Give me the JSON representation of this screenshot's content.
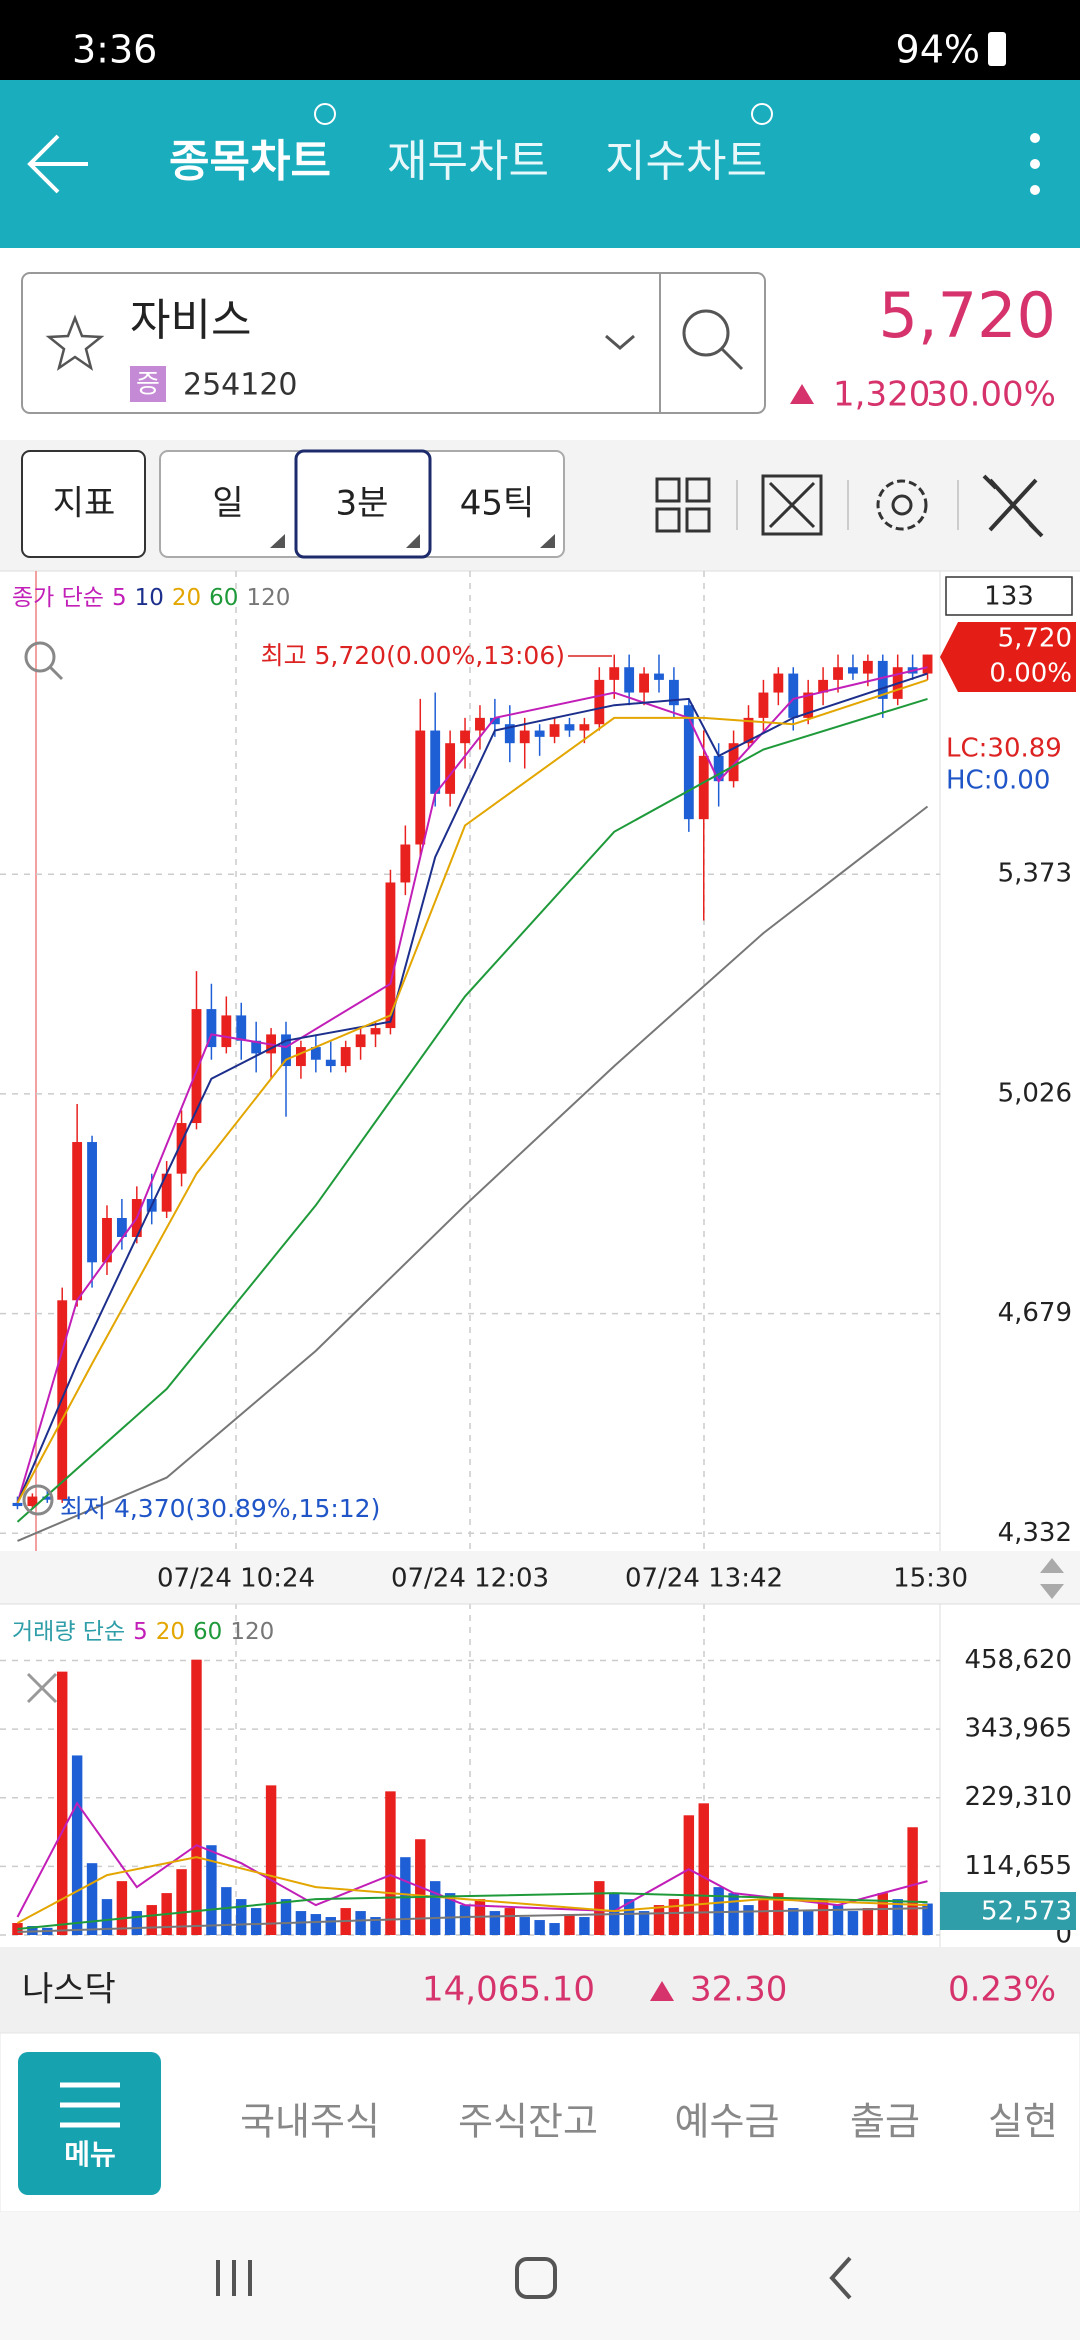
{
  "status_bar": {
    "time": "3:36",
    "battery": "94%"
  },
  "header": {
    "tabs": [
      "종목차트",
      "재무차트",
      "지수차트"
    ]
  },
  "stock": {
    "name": "자비스",
    "badge": "증",
    "code": "254120",
    "price": "5,720",
    "change": "1,320",
    "change_rate": "30.00%"
  },
  "toolbar": {
    "buttons": [
      "지표",
      "일",
      "3분",
      "45틱"
    ]
  },
  "chart_info": {
    "count": "133",
    "price_tag": "5,720",
    "rate_tag": "0.00%",
    "lc": "LC:30.89",
    "hc": "HC:0.00",
    "high_note": "최고 5,720(0.00%,13:06)",
    "low_note": "최저 4,370(30.89%,15:12)",
    "x_labels": [
      "07/24 10:24",
      "07/24 12:03",
      "07/24 13:42",
      "15:30"
    ],
    "volume_tag": "52,573"
  },
  "chart_data": [
    {
      "type": "candlestick",
      "legend_label": "종가 단순",
      "up_color": "#e8211f",
      "down_color": "#1f5fd6",
      "open": [
        4380,
        4375,
        4390,
        4385,
        4700,
        4950,
        4760,
        4830,
        4800,
        4860,
        4840,
        4900,
        4980,
        5160,
        5100,
        5150,
        5110,
        5090,
        5120,
        5070,
        5100,
        5080,
        5070,
        5100,
        5120,
        5130,
        5360,
        5420,
        5600,
        5500,
        5580,
        5600,
        5620,
        5610,
        5580,
        5600,
        5590,
        5610,
        5600,
        5610,
        5680,
        5700,
        5660,
        5690,
        5680,
        5640,
        5460,
        5560,
        5520,
        5580,
        5620,
        5660,
        5690,
        5620,
        5660,
        5680,
        5700,
        5690,
        5710,
        5650,
        5700,
        5690
      ],
      "high": [
        4390,
        4395,
        4400,
        4720,
        5010,
        4960,
        4850,
        4860,
        4880,
        4900,
        4920,
        5000,
        5220,
        5200,
        5180,
        5170,
        5140,
        5130,
        5140,
        5110,
        5120,
        5110,
        5110,
        5130,
        5140,
        5380,
        5450,
        5650,
        5660,
        5600,
        5620,
        5640,
        5650,
        5640,
        5620,
        5610,
        5620,
        5620,
        5620,
        5700,
        5720,
        5720,
        5700,
        5720,
        5700,
        5650,
        5600,
        5580,
        5600,
        5640,
        5680,
        5700,
        5700,
        5680,
        5700,
        5720,
        5720,
        5720,
        5720,
        5720,
        5720,
        5720
      ],
      "low": [
        4370,
        4370,
        4380,
        4380,
        4690,
        4720,
        4740,
        4780,
        4790,
        4820,
        4830,
        4880,
        4970,
        5080,
        5090,
        5080,
        5060,
        5050,
        4990,
        5050,
        5060,
        5060,
        5060,
        5080,
        5100,
        5120,
        5340,
        5400,
        5480,
        5480,
        5540,
        5570,
        5590,
        5550,
        5540,
        5560,
        5580,
        5590,
        5580,
        5600,
        5650,
        5640,
        5640,
        5660,
        5620,
        5440,
        5300,
        5480,
        5510,
        5570,
        5600,
        5640,
        5600,
        5610,
        5640,
        5660,
        5680,
        5670,
        5620,
        5640,
        5680,
        5680
      ],
      "close": [
        4375,
        4390,
        4385,
        4700,
        4950,
        4760,
        4830,
        4800,
        4860,
        4840,
        4900,
        4980,
        5160,
        5100,
        5150,
        5110,
        5090,
        5120,
        5070,
        5100,
        5080,
        5070,
        5100,
        5120,
        5130,
        5360,
        5420,
        5600,
        5500,
        5580,
        5600,
        5620,
        5610,
        5580,
        5600,
        5590,
        5610,
        5600,
        5610,
        5680,
        5700,
        5660,
        5690,
        5680,
        5640,
        5460,
        5560,
        5520,
        5580,
        5620,
        5660,
        5690,
        5620,
        5660,
        5680,
        5700,
        5690,
        5710,
        5650,
        5700,
        5690,
        5720
      ],
      "ylim": [
        4304,
        5852
      ],
      "yticks": [
        {
          "value": 4332,
          "label": "4,332"
        },
        {
          "value": 4679,
          "label": "4,679"
        },
        {
          "value": 5026,
          "label": "5,026"
        },
        {
          "value": 5373,
          "label": "5,373"
        }
      ],
      "series": [
        {
          "name": "5",
          "color": "#c21fb8",
          "x": [
            0,
            4,
            8,
            13,
            18,
            25,
            28,
            32,
            40,
            45,
            47,
            52,
            61
          ],
          "values": [
            4380,
            4700,
            4830,
            5120,
            5100,
            5200,
            5500,
            5620,
            5660,
            5620,
            5520,
            5650,
            5700
          ]
        },
        {
          "name": "10",
          "color": "#1d2f8c",
          "x": [
            0,
            4,
            8,
            13,
            18,
            25,
            28,
            32,
            40,
            45,
            47,
            52,
            61
          ],
          "values": [
            4380,
            4600,
            4800,
            5050,
            5110,
            5140,
            5400,
            5600,
            5640,
            5650,
            5560,
            5620,
            5690
          ]
        },
        {
          "name": "20",
          "color": "#e3a600",
          "x": [
            0,
            5,
            12,
            18,
            25,
            30,
            40,
            46,
            52,
            61
          ],
          "values": [
            4380,
            4600,
            4900,
            5080,
            5150,
            5450,
            5620,
            5620,
            5610,
            5680
          ]
        },
        {
          "name": "60",
          "color": "#1f9a3a",
          "x": [
            0,
            10,
            20,
            30,
            40,
            50,
            61
          ],
          "values": [
            4350,
            4560,
            4850,
            5180,
            5440,
            5570,
            5650
          ]
        },
        {
          "name": "120",
          "color": "#777777",
          "x": [
            0,
            10,
            20,
            30,
            40,
            50,
            61
          ],
          "values": [
            4320,
            4420,
            4620,
            4850,
            5070,
            5280,
            5480
          ]
        }
      ]
    },
    {
      "type": "bar",
      "legend_label": "거래량 단순",
      "up_color": "#e8211f",
      "down_color": "#1f5fd6",
      "values": [
        20000,
        15000,
        12000,
        440000,
        300000,
        120000,
        60000,
        90000,
        40000,
        50000,
        70000,
        110000,
        460000,
        150000,
        80000,
        60000,
        45000,
        250000,
        60000,
        40000,
        35000,
        30000,
        45000,
        40000,
        30000,
        240000,
        130000,
        160000,
        90000,
        70000,
        50000,
        60000,
        40000,
        45000,
        30000,
        25000,
        20000,
        35000,
        30000,
        90000,
        70000,
        60000,
        40000,
        50000,
        60000,
        200000,
        220000,
        80000,
        70000,
        50000,
        60000,
        70000,
        45000,
        40000,
        60000,
        50000,
        40000,
        45000,
        70000,
        60000,
        180000,
        52573
      ],
      "ylim": [
        0,
        553000
      ],
      "yticks": [
        0,
        {
          "value": 114655,
          "label": "114,655"
        },
        {
          "value": 229310,
          "label": "229,310"
        },
        {
          "value": 343965,
          "label": "343,965"
        },
        {
          "value": 458620,
          "label": "458,620"
        }
      ],
      "series": [
        {
          "name": "5",
          "color": "#c21fb8",
          "x": [
            0,
            4,
            8,
            12,
            15,
            20,
            25,
            30,
            40,
            45,
            48,
            55,
            61
          ],
          "values": [
            30000,
            220000,
            80000,
            150000,
            120000,
            50000,
            100000,
            50000,
            40000,
            110000,
            70000,
            50000,
            90000
          ]
        },
        {
          "name": "20",
          "color": "#e3a600",
          "x": [
            0,
            6,
            12,
            20,
            30,
            40,
            50,
            61
          ],
          "values": [
            20000,
            100000,
            130000,
            80000,
            60000,
            40000,
            60000,
            50000
          ]
        },
        {
          "name": "60",
          "color": "#1f9a3a",
          "x": [
            0,
            20,
            40,
            61
          ],
          "values": [
            10000,
            60000,
            70000,
            55000
          ]
        },
        {
          "name": "120",
          "color": "#777777",
          "x": [
            0,
            30,
            61
          ],
          "values": [
            5000,
            30000,
            45000
          ]
        }
      ]
    }
  ],
  "index_bar": {
    "name": "나스닥",
    "value": "14,065.10",
    "change": "32.30",
    "rate": "0.23%"
  },
  "bottom_nav": {
    "menu": "메뉴",
    "items": [
      "국내주식",
      "주식잔고",
      "예수금",
      "출금",
      "실현"
    ]
  }
}
